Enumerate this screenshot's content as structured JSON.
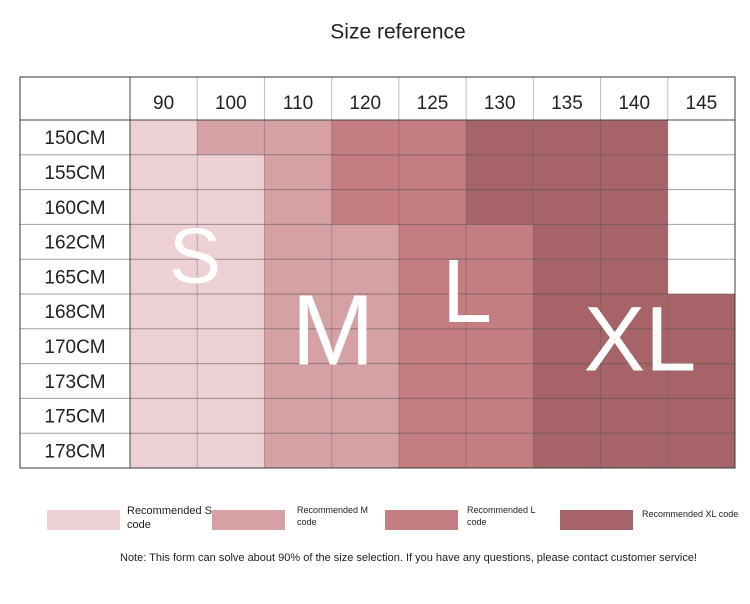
{
  "header": {
    "title": "Size reference"
  },
  "table": {
    "columns": [
      "90",
      "100",
      "110",
      "120",
      "125",
      "130",
      "135",
      "140",
      "145"
    ],
    "rows": [
      {
        "label": "150CM",
        "cells": [
          "S",
          "M",
          "M",
          "L",
          "L",
          "XL",
          "XL",
          "XL",
          null
        ]
      },
      {
        "label": "155CM",
        "cells": [
          "S",
          "S",
          "M",
          "L",
          "L",
          "XL",
          "XL",
          "XL",
          null
        ]
      },
      {
        "label": "160CM",
        "cells": [
          "S",
          "S",
          "M",
          "L",
          "L",
          "XL",
          "XL",
          "XL",
          null
        ]
      },
      {
        "label": "162CM",
        "cells": [
          "S",
          "S",
          "M",
          "M",
          "L",
          "L",
          "XL",
          "XL",
          null
        ]
      },
      {
        "label": "165CM",
        "cells": [
          "S",
          "S",
          "M",
          "M",
          "L",
          "L",
          "XL",
          "XL",
          null
        ]
      },
      {
        "label": "168CM",
        "cells": [
          "S",
          "S",
          "M",
          "M",
          "L",
          "L",
          "XL",
          "XL",
          "XL"
        ]
      },
      {
        "label": "170CM",
        "cells": [
          "S",
          "S",
          "M",
          "M",
          "L",
          "L",
          "XL",
          "XL",
          "XL"
        ]
      },
      {
        "label": "173CM",
        "cells": [
          "S",
          "S",
          "M",
          "M",
          "L",
          "L",
          "XL",
          "XL",
          "XL"
        ]
      },
      {
        "label": "175CM",
        "cells": [
          "S",
          "S",
          "M",
          "M",
          "L",
          "L",
          "XL",
          "XL",
          "XL"
        ]
      },
      {
        "label": "178CM",
        "cells": [
          "S",
          "S",
          "M",
          "M",
          "L",
          "L",
          "XL",
          "XL",
          "XL"
        ]
      }
    ]
  },
  "zones": [
    {
      "label": "S",
      "color": "#ecd0d4"
    },
    {
      "label": "M",
      "color": "#d6a1a4"
    },
    {
      "label": "L",
      "color": "#c47e81"
    },
    {
      "label": "XL",
      "color": "#a66468"
    }
  ],
  "legend": [
    "Recommended S code",
    "Recommended M code",
    "Recommended L code",
    "Recommended XL code"
  ],
  "note": "Note: This form can solve about 90% of the size selection. If you have any questions, please contact customer service!"
}
